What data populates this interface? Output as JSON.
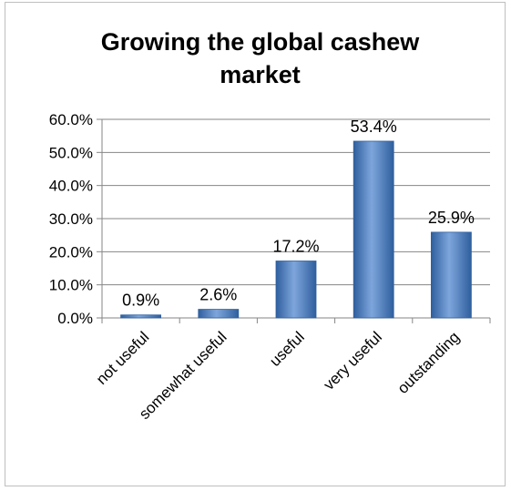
{
  "chart_data": {
    "type": "bar",
    "title": "Growing the global cashew market",
    "title_lines": [
      "Growing the global cashew",
      "market"
    ],
    "categories": [
      "not useful",
      "somewhat useful",
      "useful",
      "very useful",
      "outstanding"
    ],
    "values": [
      0.9,
      2.6,
      17.2,
      53.4,
      25.9
    ],
    "data_labels": [
      "0.9%",
      "2.6%",
      "17.2%",
      "53.4%",
      "25.9%"
    ],
    "y_ticks": [
      0,
      10,
      20,
      30,
      40,
      50,
      60
    ],
    "y_tick_labels": [
      "0.0%",
      "10.0%",
      "20.0%",
      "30.0%",
      "40.0%",
      "50.0%",
      "60.0%"
    ],
    "ylim": [
      0,
      60
    ],
    "xlabel": "",
    "ylabel": "",
    "grid": true,
    "legend": "none",
    "colors": {
      "bar": "#4f81bd",
      "bar_light": "#7ea6dc",
      "bar_dark": "#2f5f9e",
      "gridline": "#868686",
      "axis": "#868686",
      "text": "#000000"
    }
  }
}
